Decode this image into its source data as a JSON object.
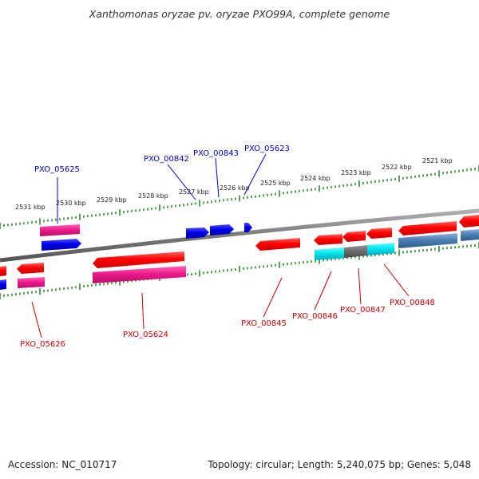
{
  "title": "Xanthomonas oryzae pv. oryzae PXO99A, complete genome",
  "footer": {
    "accession": "Accession: NC_010717",
    "summary": "Topology: circular; Length: 5,240,075 bp; Genes: 5,048"
  },
  "colors": {
    "backbone": "#808080",
    "tick": "#2e8b2e",
    "forward_label": "#0000cc",
    "reverse_label": "#cc0000"
  },
  "scale_labels": [
    "2531 kbp",
    "2530 kbp",
    "2529 kbp",
    "2528 kbp",
    "2527 kbp",
    "2526 kbp",
    "2525 kbp",
    "2524 kbp",
    "2523 kbp",
    "2522 kbp",
    "2521 kbp"
  ],
  "forward_labels": [
    "PXO_05625",
    "PXO_00842",
    "PXO_00843",
    "PXO_05623"
  ],
  "reverse_labels": [
    "PXO_05626",
    "PXO_05624",
    "PXO_00845",
    "PXO_00846",
    "PXO_00847",
    "PXO_00848"
  ]
}
